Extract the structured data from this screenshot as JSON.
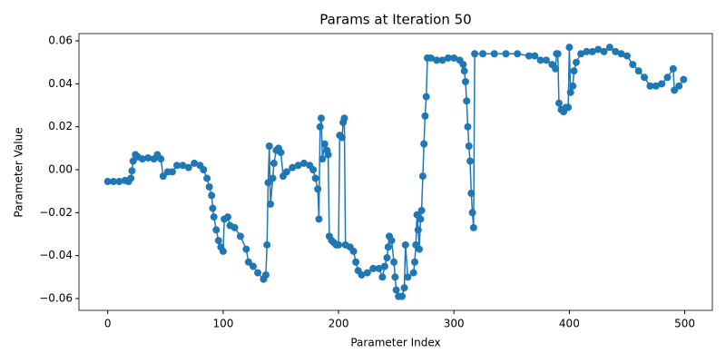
{
  "chart_data": {
    "type": "line",
    "title": "Params at Iteration 50",
    "xlabel": "Parameter Index",
    "ylabel": "Parameter Value",
    "series": [
      {
        "color": "#1f77b4",
        "x": [
          0,
          5,
          10,
          15,
          18,
          20,
          21,
          22,
          24,
          26,
          30,
          35,
          40,
          43,
          46,
          48,
          52,
          56,
          60,
          65,
          70,
          75,
          80,
          83,
          86,
          88,
          90,
          91,
          92,
          94,
          96,
          98,
          100,
          101,
          104,
          106,
          110,
          115,
          120,
          122,
          126,
          130,
          135,
          137,
          138,
          139,
          140,
          141,
          143,
          144,
          146,
          148,
          150,
          152,
          155,
          160,
          165,
          170,
          175,
          178,
          180,
          182,
          183,
          184,
          185,
          186,
          188,
          190,
          191,
          192,
          194,
          196,
          198,
          200,
          201,
          203,
          204,
          205,
          206,
          210,
          213,
          215,
          217,
          220,
          225,
          230,
          235,
          238,
          240,
          242,
          243,
          244,
          246,
          248,
          249,
          250,
          252,
          255,
          257,
          258,
          260,
          265,
          266,
          267,
          268,
          269,
          270,
          271,
          272,
          273,
          274,
          275,
          276,
          277,
          280,
          285,
          290,
          295,
          300,
          305,
          308,
          309,
          310,
          311,
          312,
          313,
          314,
          315,
          316,
          317,
          318,
          325,
          335,
          345,
          355,
          365,
          370,
          375,
          380,
          385,
          388,
          389,
          390,
          391,
          393,
          395,
          397,
          399,
          400,
          401,
          403,
          404,
          406,
          410,
          415,
          420,
          425,
          430,
          435,
          440,
          445,
          450,
          455,
          460,
          465,
          470,
          475,
          480,
          485,
          490,
          491,
          495,
          499
        ],
        "values": [
          -0.0055,
          -0.0055,
          -0.0055,
          -0.005,
          -0.0055,
          -0.004,
          -0.0005,
          0.004,
          0.007,
          0.006,
          0.005,
          0.0055,
          0.005,
          0.007,
          0.005,
          -0.003,
          -0.001,
          -0.001,
          0.002,
          0.002,
          0.001,
          0.003,
          0.002,
          0.0,
          -0.004,
          -0.008,
          -0.012,
          -0.018,
          -0.022,
          -0.028,
          -0.033,
          -0.036,
          -0.038,
          -0.023,
          -0.022,
          -0.026,
          -0.027,
          -0.031,
          -0.037,
          -0.043,
          -0.045,
          -0.048,
          -0.051,
          -0.049,
          -0.035,
          -0.006,
          0.011,
          -0.016,
          -0.004,
          0.003,
          0.009,
          0.01,
          0.008,
          -0.003,
          -0.001,
          0.001,
          0.002,
          0.003,
          0.002,
          0.0,
          -0.004,
          -0.009,
          -0.023,
          0.02,
          0.024,
          0.005,
          0.012,
          0.009,
          0.007,
          -0.031,
          -0.033,
          -0.034,
          -0.035,
          -0.035,
          0.016,
          0.015,
          0.022,
          0.024,
          -0.035,
          -0.036,
          -0.038,
          -0.043,
          -0.047,
          -0.049,
          -0.048,
          -0.046,
          -0.046,
          -0.05,
          -0.045,
          -0.041,
          -0.036,
          -0.031,
          -0.033,
          -0.043,
          -0.05,
          -0.056,
          -0.059,
          -0.059,
          -0.055,
          -0.035,
          -0.05,
          -0.048,
          -0.043,
          -0.035,
          -0.021,
          -0.028,
          -0.037,
          -0.023,
          -0.019,
          -0.003,
          0.012,
          0.025,
          0.034,
          0.052,
          0.052,
          0.051,
          0.051,
          0.052,
          0.052,
          0.051,
          0.049,
          0.046,
          0.041,
          0.032,
          0.02,
          0.011,
          0.004,
          -0.011,
          -0.02,
          -0.027,
          0.054,
          0.054,
          0.054,
          0.054,
          0.054,
          0.053,
          0.053,
          0.051,
          0.051,
          0.049,
          0.047,
          0.054,
          0.054,
          0.031,
          0.028,
          0.027,
          0.029,
          0.029,
          0.057,
          0.036,
          0.039,
          0.046,
          0.05,
          0.054,
          0.055,
          0.055,
          0.056,
          0.055,
          0.057,
          0.055,
          0.054,
          0.053,
          0.049,
          0.046,
          0.043,
          0.039,
          0.039,
          0.04,
          0.043,
          0.047,
          0.037,
          0.039,
          0.042
        ]
      }
    ],
    "xlim": [
      -24.95,
      523.95
    ],
    "xticks": [
      0,
      100,
      200,
      300,
      400,
      500
    ],
    "ylim": [
      -0.0655,
      0.0634
    ],
    "yticks": [
      {
        "value": -0.06,
        "label": "−0.06"
      },
      {
        "value": -0.04,
        "label": "−0.04"
      },
      {
        "value": -0.02,
        "label": "−0.02"
      },
      {
        "value": 0,
        "label": "0.00"
      },
      {
        "value": 0.02,
        "label": "0.02"
      },
      {
        "value": 0.04,
        "label": "0.04"
      },
      {
        "value": 0.06,
        "label": "0.06"
      }
    ]
  }
}
